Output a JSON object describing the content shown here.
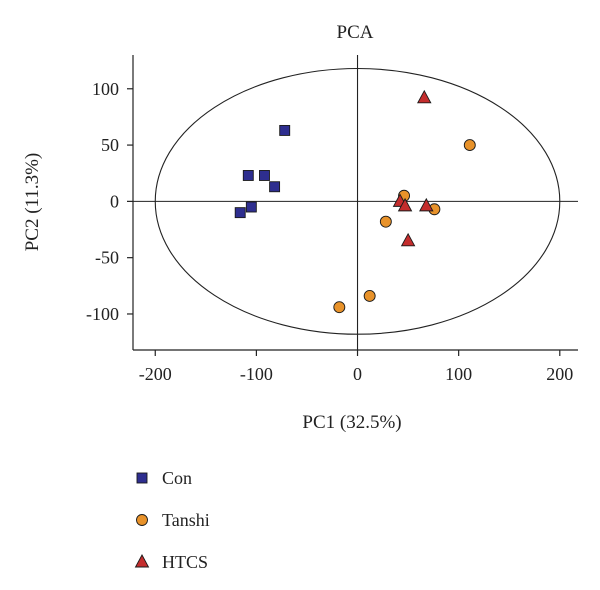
{
  "chart_data": {
    "type": "scatter",
    "title": "PCA",
    "xlabel": "PC1 (32.5%)",
    "ylabel": "PC2 (11.3%)",
    "xlim": [
      -222,
      218
    ],
    "ylim": [
      -132,
      130
    ],
    "xticks": [
      -200,
      -100,
      0,
      100,
      200
    ],
    "yticks": [
      -100,
      -50,
      0,
      50,
      100
    ],
    "xtick_labels": [
      "-200",
      "-100",
      "0",
      "100",
      "200"
    ],
    "ytick_labels": [
      "-100",
      "-50",
      "0",
      "50",
      "100"
    ],
    "reference_lines": {
      "x": 0,
      "y": 0
    },
    "confidence_ellipse": {
      "cx": 0,
      "cy": 0,
      "rx": 200,
      "ry": 118
    },
    "legend_position": "bottom-left",
    "series": [
      {
        "name": "Con",
        "marker": "square",
        "color": "#2e2e8f",
        "points": [
          [
            -72,
            63
          ],
          [
            -108,
            23
          ],
          [
            -92,
            23
          ],
          [
            -82,
            13
          ],
          [
            -105,
            -5
          ],
          [
            -116,
            -10
          ]
        ]
      },
      {
        "name": "Tanshi",
        "marker": "circle",
        "color": "#e8922a",
        "points": [
          [
            111,
            50
          ],
          [
            46,
            5
          ],
          [
            76,
            -7
          ],
          [
            28,
            -18
          ],
          [
            12,
            -84
          ],
          [
            -18,
            -94
          ]
        ]
      },
      {
        "name": "HTCS",
        "marker": "triangle",
        "color": "#c42d2d",
        "points": [
          [
            66,
            92
          ],
          [
            42,
            0
          ],
          [
            47,
            -4
          ],
          [
            68,
            -4
          ],
          [
            50,
            -35
          ]
        ]
      }
    ]
  }
}
